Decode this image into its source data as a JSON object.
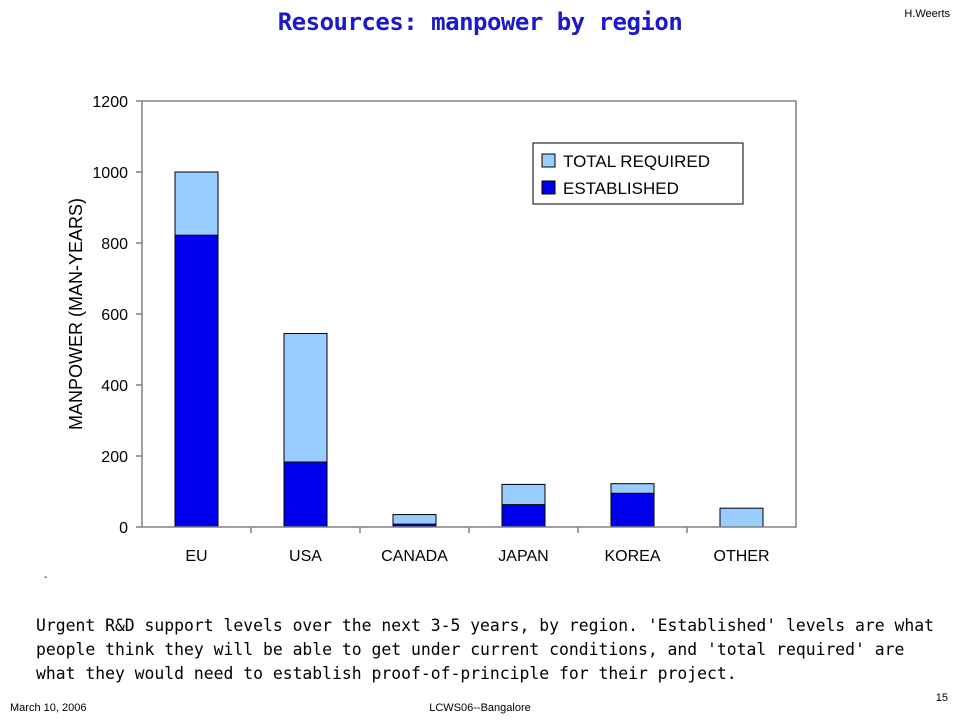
{
  "slide": {
    "title": "Resources: manpower by region",
    "author": "H.Weerts",
    "caption": "Urgent R&D support levels over the next 3-5 years, by region. 'Established' levels are what people think they will be able to get under current conditions, and 'total required' are what they would need to establish proof-of-principle for their project.",
    "footer_date": "March 10, 2006",
    "footer_event": "LCWS06--Bangalore",
    "page_number": "15",
    "stray_mark": "-"
  },
  "colors": {
    "established": "#0000ee",
    "total_required": "#99ccff",
    "plot_border": "#808080",
    "title": "#1a1acc"
  },
  "chart_data": {
    "type": "bar",
    "stacking": "overlay",
    "categories": [
      "EU",
      "USA",
      "CANADA",
      "JAPAN",
      "KOREA",
      "OTHER"
    ],
    "series": [
      {
        "name": "TOTAL REQUIRED",
        "values": [
          1000,
          545,
          35,
          120,
          122,
          53
        ]
      },
      {
        "name": "ESTABLISHED",
        "values": [
          822,
          183,
          8,
          63,
          95,
          0
        ]
      }
    ],
    "xlabel": "",
    "ylabel": "MANPOWER (MAN-YEARS)",
    "ylim": [
      0,
      1200
    ],
    "yticks": [
      "0",
      "200",
      "400",
      "600",
      "800",
      "1000",
      "1200"
    ],
    "grid": false,
    "legend_position": "top-right"
  }
}
